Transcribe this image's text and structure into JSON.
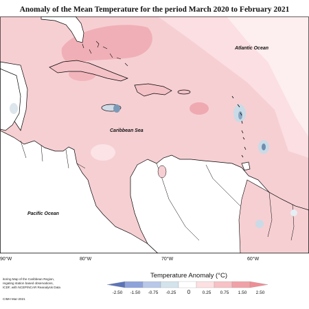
{
  "title": "Anomaly of the Mean Temperature for the period March 2020 to February 2021",
  "map": {
    "labels": {
      "atlantic": "Atlantic Ocean",
      "caribbean": "Caribbean Sea",
      "pacific": "Pacific Ocean"
    },
    "longitude_labels": [
      "90°W",
      "80°W",
      "70°W",
      "60°W"
    ]
  },
  "legend": {
    "title": "Temperature Anomaly (°C)",
    "bins": [
      {
        "color": "#5b74b8"
      },
      {
        "color": "#8fa3db"
      },
      {
        "color": "#b9c8e8"
      },
      {
        "color": "#d3e4ec"
      },
      {
        "color": "#ffffff"
      },
      {
        "color": "#fde0e2"
      },
      {
        "color": "#f7c1c5"
      },
      {
        "color": "#f0a1a7"
      },
      {
        "color": "#ef8d95"
      }
    ],
    "ticks": [
      "-2.50",
      "-1.50",
      "-0.75",
      "-0.25",
      "0",
      "0.25",
      "0.75",
      "1.50",
      "2.50"
    ]
  },
  "credits": {
    "lines": [
      "itoring Map of the Caribbean Region,",
      "regating station based observations,",
      "ICDF, with NCEP/NCAR Reanalysis Data"
    ],
    "date": "CIMH Mar-2021"
  },
  "colors": {
    "anomaly_base": "#f6cfd3",
    "anomaly_warm": "#f2b1b8",
    "anomaly_light": "#fce7e9",
    "anomaly_cool": "#a9c2d6",
    "anomaly_cold": "#7c9ab8",
    "land": "#ffffff",
    "coast": "#000000"
  }
}
